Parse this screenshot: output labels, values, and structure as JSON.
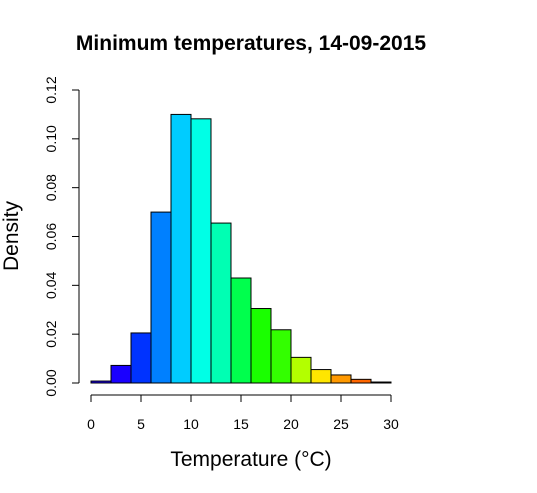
{
  "chart_data": {
    "type": "bar",
    "title": "Minimum temperatures, 14-09-2015",
    "xlabel": "Temperature (°C)",
    "ylabel": "Density",
    "xlim": [
      0,
      30
    ],
    "ylim": [
      0,
      0.12
    ],
    "x_ticks": [
      "0",
      "5",
      "10",
      "15",
      "20",
      "25",
      "30"
    ],
    "y_ticks": [
      "0.00",
      "0.02",
      "0.04",
      "0.06",
      "0.08",
      "0.10",
      "0.12"
    ],
    "grid": false,
    "legend": "none",
    "bins": [
      {
        "x0": 0,
        "x1": 2,
        "density": 0.0008,
        "color": "#1a00ff"
      },
      {
        "x0": 2,
        "x1": 4,
        "density": 0.0072,
        "color": "#1a00ff"
      },
      {
        "x0": 4,
        "x1": 6,
        "density": 0.0205,
        "color": "#0033ff"
      },
      {
        "x0": 6,
        "x1": 8,
        "density": 0.07,
        "color": "#0080ff"
      },
      {
        "x0": 8,
        "x1": 10,
        "density": 0.11,
        "color": "#00ccff"
      },
      {
        "x0": 10,
        "x1": 12,
        "density": 0.1082,
        "color": "#00ffe6"
      },
      {
        "x0": 12,
        "x1": 14,
        "density": 0.0655,
        "color": "#00ffb3"
      },
      {
        "x0": 14,
        "x1": 16,
        "density": 0.043,
        "color": "#00ff4d"
      },
      {
        "x0": 16,
        "x1": 18,
        "density": 0.0305,
        "color": "#1aff00"
      },
      {
        "x0": 18,
        "x1": 20,
        "density": 0.0218,
        "color": "#33ff00"
      },
      {
        "x0": 20,
        "x1": 22,
        "density": 0.0105,
        "color": "#b3ff00"
      },
      {
        "x0": 22,
        "x1": 24,
        "density": 0.0055,
        "color": "#ffe600"
      },
      {
        "x0": 24,
        "x1": 26,
        "density": 0.0033,
        "color": "#ff9900"
      },
      {
        "x0": 26,
        "x1": 28,
        "density": 0.0015,
        "color": "#ff6600"
      },
      {
        "x0": 28,
        "x1": 30,
        "density": 0.0004,
        "color": "#ff3300"
      }
    ]
  }
}
